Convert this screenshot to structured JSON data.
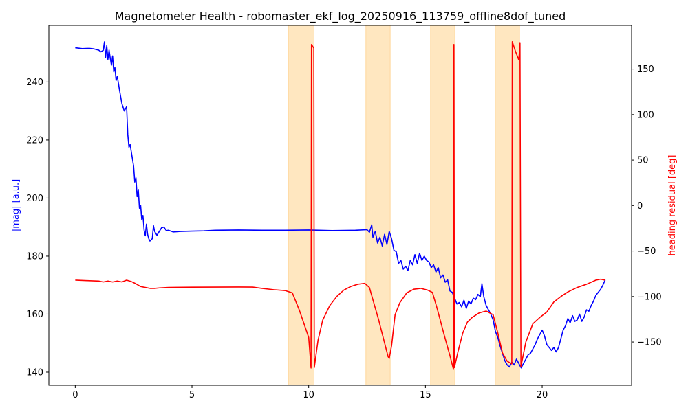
{
  "chart_data": {
    "type": "line",
    "title": "Magnetometer Health - robomaster_ekf_log_20250916_113759_offline8dof_tuned",
    "xlabel": "",
    "ylabel_left": "|mag| [a.u.]",
    "ylabel_right": "heading residual [deg]",
    "xlim": [
      -1.13,
      23.83
    ],
    "ylim_left": [
      135.5,
      259.5
    ],
    "ylim_right": [
      -197.5,
      198
    ],
    "x_ticks": [
      0,
      5,
      10,
      15,
      20
    ],
    "y_left_ticks": [
      140,
      160,
      180,
      200,
      220,
      240
    ],
    "y_right_ticks": [
      -150,
      -100,
      -50,
      0,
      50,
      100,
      150
    ],
    "grid": false,
    "legend": "none",
    "colors": {
      "mag": "#0000ff",
      "residual": "#ff0000",
      "span": "#ffe7c0",
      "span_edge": "#ffd79a"
    },
    "highlight_spans": [
      {
        "x0": 9.13,
        "x1": 10.23
      },
      {
        "x0": 12.45,
        "x1": 13.49
      },
      {
        "x0": 15.22,
        "x1": 16.26
      },
      {
        "x0": 17.99,
        "x1": 19.03
      }
    ],
    "series": [
      {
        "axis": "left",
        "points": [
          [
            0.0,
            251.8
          ],
          [
            0.3,
            251.5
          ],
          [
            0.6,
            251.6
          ],
          [
            0.8,
            251.4
          ],
          [
            1.0,
            251.0
          ],
          [
            1.1,
            250.4
          ],
          [
            1.2,
            250.9
          ],
          [
            1.25,
            253.8
          ],
          [
            1.3,
            248.5
          ],
          [
            1.35,
            252.5
          ],
          [
            1.4,
            247.8
          ],
          [
            1.45,
            251.0
          ],
          [
            1.5,
            248.2
          ],
          [
            1.55,
            245.8
          ],
          [
            1.6,
            249.0
          ],
          [
            1.65,
            243.5
          ],
          [
            1.7,
            245.0
          ],
          [
            1.75,
            240.5
          ],
          [
            1.8,
            242.0
          ],
          [
            1.9,
            237.0
          ],
          [
            2.0,
            232.5
          ],
          [
            2.1,
            230.0
          ],
          [
            2.2,
            231.5
          ],
          [
            2.25,
            222.0
          ],
          [
            2.3,
            217.5
          ],
          [
            2.35,
            218.5
          ],
          [
            2.4,
            216.0
          ],
          [
            2.5,
            211.0
          ],
          [
            2.55,
            205.5
          ],
          [
            2.6,
            207.0
          ],
          [
            2.65,
            200.5
          ],
          [
            2.7,
            203.0
          ],
          [
            2.75,
            196.5
          ],
          [
            2.8,
            197.5
          ],
          [
            2.85,
            192.5
          ],
          [
            2.9,
            194.0
          ],
          [
            2.95,
            189.0
          ],
          [
            3.0,
            187.0
          ],
          [
            3.05,
            191.0
          ],
          [
            3.1,
            187.5
          ],
          [
            3.15,
            186.0
          ],
          [
            3.2,
            185.2
          ],
          [
            3.3,
            186.0
          ],
          [
            3.35,
            190.5
          ],
          [
            3.4,
            188.5
          ],
          [
            3.5,
            187.2
          ],
          [
            3.6,
            188.5
          ],
          [
            3.7,
            189.8
          ],
          [
            3.8,
            190.0
          ],
          [
            3.9,
            188.8
          ],
          [
            4.0,
            188.9
          ],
          [
            4.2,
            188.3
          ],
          [
            4.5,
            188.5
          ],
          [
            5.0,
            188.6
          ],
          [
            5.5,
            188.7
          ],
          [
            6.0,
            188.9
          ],
          [
            7.0,
            189.0
          ],
          [
            8.0,
            188.9
          ],
          [
            9.0,
            188.9
          ],
          [
            10.0,
            189.0
          ],
          [
            11.0,
            188.8
          ],
          [
            12.0,
            188.9
          ],
          [
            12.5,
            189.1
          ],
          [
            12.6,
            188.2
          ],
          [
            12.7,
            190.8
          ],
          [
            12.75,
            186.5
          ],
          [
            12.85,
            188.5
          ],
          [
            12.95,
            184.5
          ],
          [
            13.05,
            186.5
          ],
          [
            13.15,
            183.5
          ],
          [
            13.25,
            187.5
          ],
          [
            13.35,
            184.0
          ],
          [
            13.45,
            188.5
          ],
          [
            13.55,
            186.0
          ],
          [
            13.65,
            182.0
          ],
          [
            13.75,
            181.5
          ],
          [
            13.85,
            177.5
          ],
          [
            13.95,
            178.5
          ],
          [
            14.05,
            175.5
          ],
          [
            14.15,
            176.5
          ],
          [
            14.25,
            175.0
          ],
          [
            14.35,
            178.5
          ],
          [
            14.45,
            177.0
          ],
          [
            14.55,
            180.5
          ],
          [
            14.65,
            177.5
          ],
          [
            14.75,
            181.0
          ],
          [
            14.85,
            178.5
          ],
          [
            14.95,
            180.0
          ],
          [
            15.05,
            178.5
          ],
          [
            15.15,
            178.0
          ],
          [
            15.25,
            176.0
          ],
          [
            15.35,
            177.0
          ],
          [
            15.45,
            174.5
          ],
          [
            15.55,
            176.0
          ],
          [
            15.65,
            172.5
          ],
          [
            15.75,
            173.5
          ],
          [
            15.85,
            171.0
          ],
          [
            15.95,
            171.8
          ],
          [
            16.05,
            168.0
          ],
          [
            16.15,
            167.5
          ],
          [
            16.25,
            165.5
          ],
          [
            16.35,
            163.5
          ],
          [
            16.45,
            164.0
          ],
          [
            16.55,
            162.5
          ],
          [
            16.65,
            164.8
          ],
          [
            16.75,
            162.0
          ],
          [
            16.85,
            164.5
          ],
          [
            16.95,
            163.5
          ],
          [
            17.05,
            165.5
          ],
          [
            17.15,
            165.0
          ],
          [
            17.25,
            166.8
          ],
          [
            17.35,
            166.0
          ],
          [
            17.42,
            170.5
          ],
          [
            17.5,
            166.0
          ],
          [
            17.6,
            163.0
          ],
          [
            17.7,
            161.5
          ],
          [
            17.8,
            160.0
          ],
          [
            17.9,
            158.0
          ],
          [
            18.0,
            154.0
          ],
          [
            18.1,
            152.0
          ],
          [
            18.2,
            149.0
          ],
          [
            18.3,
            146.5
          ],
          [
            18.4,
            144.0
          ],
          [
            18.5,
            142.5
          ],
          [
            18.6,
            141.8
          ],
          [
            18.7,
            143.5
          ],
          [
            18.8,
            142.5
          ],
          [
            18.9,
            144.5
          ],
          [
            19.0,
            143.0
          ],
          [
            19.1,
            141.5
          ],
          [
            19.2,
            143.0
          ],
          [
            19.3,
            144.5
          ],
          [
            19.4,
            146.0
          ],
          [
            19.5,
            146.5
          ],
          [
            19.6,
            148.0
          ],
          [
            19.7,
            149.5
          ],
          [
            19.8,
            151.5
          ],
          [
            19.9,
            153.0
          ],
          [
            20.0,
            154.5
          ],
          [
            20.1,
            152.5
          ],
          [
            20.2,
            149.5
          ],
          [
            20.3,
            148.5
          ],
          [
            20.4,
            147.5
          ],
          [
            20.5,
            148.5
          ],
          [
            20.6,
            147.0
          ],
          [
            20.7,
            148.5
          ],
          [
            20.8,
            151.5
          ],
          [
            20.9,
            154.5
          ],
          [
            21.0,
            156.0
          ],
          [
            21.1,
            158.5
          ],
          [
            21.2,
            157.0
          ],
          [
            21.3,
            159.5
          ],
          [
            21.4,
            157.5
          ],
          [
            21.5,
            158.0
          ],
          [
            21.6,
            160.0
          ],
          [
            21.7,
            157.5
          ],
          [
            21.8,
            159.0
          ],
          [
            21.9,
            161.5
          ],
          [
            22.0,
            161.0
          ],
          [
            22.1,
            163.0
          ],
          [
            22.2,
            164.5
          ],
          [
            22.3,
            166.5
          ],
          [
            22.4,
            167.5
          ],
          [
            22.5,
            168.5
          ],
          [
            22.6,
            170.0
          ],
          [
            22.7,
            171.8
          ]
        ]
      },
      {
        "axis": "right",
        "points": [
          [
            0.0,
            -82.0
          ],
          [
            0.5,
            -82.5
          ],
          [
            1.0,
            -83.0
          ],
          [
            1.2,
            -84.0
          ],
          [
            1.4,
            -83.0
          ],
          [
            1.6,
            -84.0
          ],
          [
            1.8,
            -83.0
          ],
          [
            2.0,
            -84.0
          ],
          [
            2.2,
            -82.0
          ],
          [
            2.4,
            -83.5
          ],
          [
            2.6,
            -86.0
          ],
          [
            2.8,
            -89.0
          ],
          [
            3.0,
            -90.0
          ],
          [
            3.2,
            -91.0
          ],
          [
            3.4,
            -91.0
          ],
          [
            3.6,
            -90.5
          ],
          [
            4.0,
            -90.0
          ],
          [
            5.0,
            -89.7
          ],
          [
            6.0,
            -89.6
          ],
          [
            7.0,
            -89.5
          ],
          [
            7.6,
            -89.6
          ],
          [
            8.0,
            -91.0
          ],
          [
            8.5,
            -92.5
          ],
          [
            9.0,
            -93.5
          ],
          [
            9.3,
            -96.0
          ],
          [
            9.6,
            -115.0
          ],
          [
            10.0,
            -145.0
          ],
          [
            10.1,
            -178.5
          ],
          [
            10.12,
            177.0
          ],
          [
            10.22,
            173.0
          ],
          [
            10.24,
            -178.0
          ],
          [
            10.4,
            -148.0
          ],
          [
            10.6,
            -126.0
          ],
          [
            10.9,
            -110.0
          ],
          [
            11.2,
            -100.0
          ],
          [
            11.5,
            -93.0
          ],
          [
            11.8,
            -89.0
          ],
          [
            12.1,
            -86.5
          ],
          [
            12.4,
            -85.5
          ],
          [
            12.6,
            -90.0
          ],
          [
            12.8,
            -108.0
          ],
          [
            13.0,
            -126.0
          ],
          [
            13.2,
            -146.0
          ],
          [
            13.4,
            -166.0
          ],
          [
            13.45,
            -168.0
          ],
          [
            13.55,
            -154.0
          ],
          [
            13.7,
            -120.0
          ],
          [
            13.9,
            -107.0
          ],
          [
            14.2,
            -96.0
          ],
          [
            14.5,
            -92.0
          ],
          [
            14.8,
            -91.0
          ],
          [
            15.1,
            -93.0
          ],
          [
            15.3,
            -95.5
          ],
          [
            15.5,
            -113.0
          ],
          [
            15.8,
            -142.0
          ],
          [
            16.05,
            -165.0
          ],
          [
            16.2,
            -180.0
          ],
          [
            16.22,
            177.0
          ],
          [
            16.24,
            -178.0
          ],
          [
            16.4,
            -160.0
          ],
          [
            16.6,
            -140.0
          ],
          [
            16.8,
            -128.0
          ],
          [
            17.0,
            -123.0
          ],
          [
            17.3,
            -118.0
          ],
          [
            17.6,
            -116.0
          ],
          [
            17.9,
            -120.0
          ],
          [
            18.1,
            -140.0
          ],
          [
            18.3,
            -162.0
          ],
          [
            18.5,
            -171.0
          ],
          [
            18.7,
            -174.0
          ],
          [
            18.72,
            180.0
          ],
          [
            18.85,
            170.0
          ],
          [
            19.0,
            160.0
          ],
          [
            19.05,
            179.0
          ],
          [
            19.09,
            -177.0
          ],
          [
            19.3,
            -150.0
          ],
          [
            19.6,
            -130.0
          ],
          [
            19.9,
            -123.0
          ],
          [
            20.2,
            -117.0
          ],
          [
            20.5,
            -106.0
          ],
          [
            20.8,
            -100.0
          ],
          [
            21.1,
            -95.0
          ],
          [
            21.5,
            -90.0
          ],
          [
            21.9,
            -86.5
          ],
          [
            22.3,
            -82.0
          ],
          [
            22.5,
            -81.0
          ],
          [
            22.7,
            -82.0
          ]
        ]
      }
    ]
  }
}
